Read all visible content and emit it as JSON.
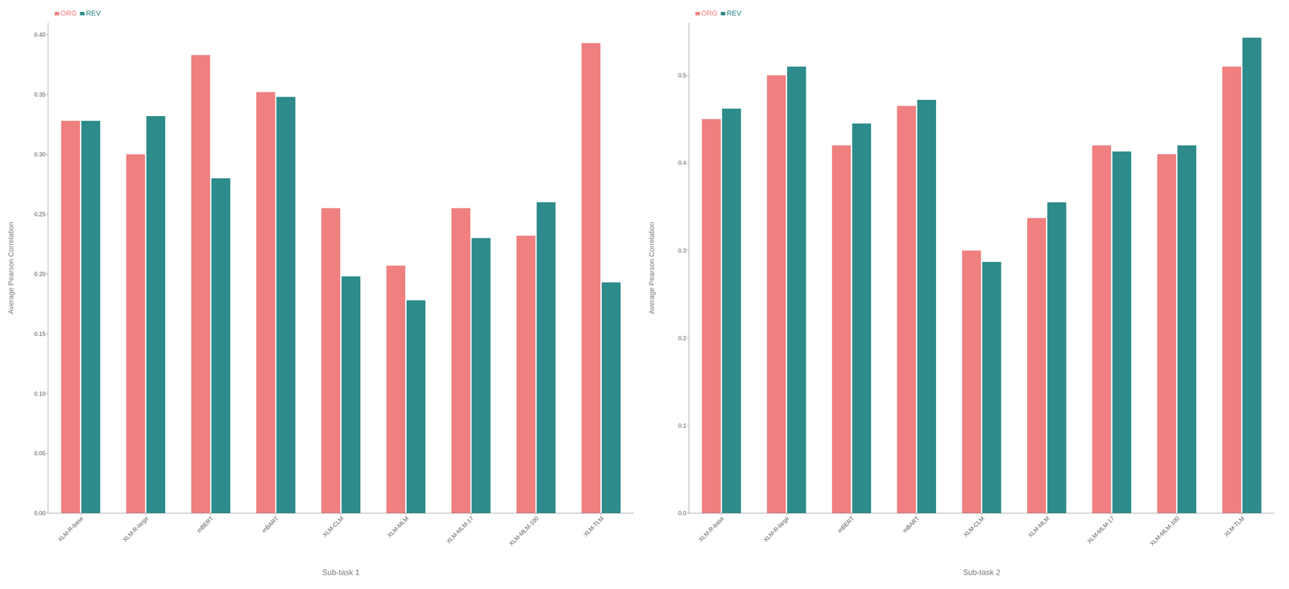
{
  "chart_data": [
    {
      "type": "bar",
      "x_label": "Sub-task 1",
      "y_label": "Average Pearson Correlation",
      "categories": [
        "XLM-R-base",
        "XLM-R-large",
        "mBERT",
        "mBART",
        "XLM-CLM",
        "XLM-MLM",
        "XLM-MLM-17",
        "XLM-MLM-100",
        "XLM-TLM"
      ],
      "series": [
        {
          "name": "ORG",
          "color": "#F08080",
          "values": [
            0.328,
            0.3,
            0.383,
            0.352,
            0.255,
            0.207,
            0.255,
            0.232,
            0.393
          ]
        },
        {
          "name": "REV",
          "color": "#2E8B8B",
          "values": [
            0.328,
            0.332,
            0.28,
            0.348,
            0.198,
            0.178,
            0.23,
            0.26,
            0.193
          ]
        }
      ],
      "ylim": [
        0,
        0.41
      ],
      "yticks": [
        {
          "value": 0,
          "label": "0.00"
        },
        0.05,
        {
          "value": 0.1,
          "label": "0.10"
        },
        0.15,
        {
          "value": 0.2,
          "label": "0.20"
        },
        0.25,
        {
          "value": 0.3,
          "label": "0.30"
        },
        0.35,
        {
          "value": 0.4,
          "label": "0.40"
        }
      ],
      "grid": false,
      "legend": "upper left"
    },
    {
      "type": "bar",
      "x_label": "Sub-task 2",
      "y_label": "Average Pearson Correlation",
      "categories": [
        "XLM-R-base",
        "XLM-R-large",
        "mBERT",
        "mBART",
        "XLM-CLM",
        "XLM-MLM",
        "XLM-MLM-17",
        "XLM-MLM-100",
        "XLM-TLM"
      ],
      "series": [
        {
          "name": "ORG",
          "color": "#F08080",
          "values": [
            0.45,
            0.5,
            0.42,
            0.465,
            0.3,
            0.337,
            0.42,
            0.41,
            0.51
          ]
        },
        {
          "name": "REV",
          "color": "#2E8B8B",
          "values": [
            0.462,
            0.51,
            0.445,
            0.472,
            0.287,
            0.355,
            0.413,
            0.42,
            0.543
          ]
        }
      ],
      "ylim": [
        0,
        0.56
      ],
      "yticks": [
        {
          "value": 0,
          "label": "0.0"
        },
        0.1,
        0.2,
        0.3,
        0.4,
        0.5
      ],
      "grid": false,
      "legend": "upper left"
    }
  ]
}
